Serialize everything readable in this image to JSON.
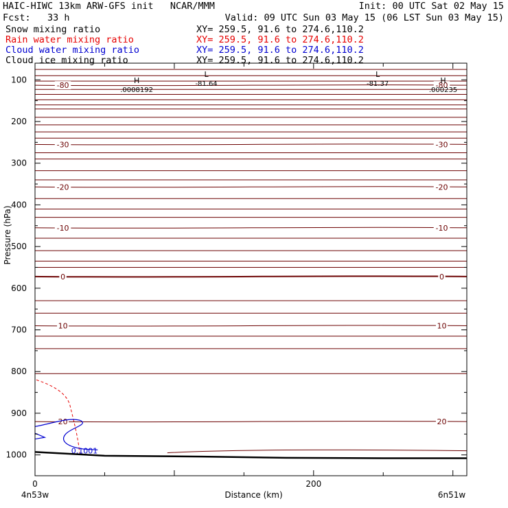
{
  "header": {
    "title_left": "HAIC-HIWC 13km ARW-GFS init   NCAR/MMM",
    "init": "Init: 00 UTC Sat 02 May 15",
    "fcst_label": "Fcst:   33 h",
    "valid": "Valid: 09 UTC Sun 03 May 15 (06 LST Sun 03 May 15)",
    "fields": [
      {
        "name": "Snow mixing ratio",
        "xy": "XY= 259.5, 91.6 to 274.6,110.2",
        "color": "#000000"
      },
      {
        "name": "Rain water mixing ratio",
        "xy": "XY= 259.5, 91.6 to 274.6,110.2",
        "color": "#e60000"
      },
      {
        "name": "Cloud water mixing ratio",
        "xy": "XY= 259.5, 91.6 to 274.6,110.2",
        "color": "#0000d0"
      },
      {
        "name": "Cloud ice mixing ratio",
        "xy": "XY= 259.5, 91.6 to 274.6,110.2",
        "color": "#000000"
      }
    ]
  },
  "chart_data": {
    "type": "cross-section contour",
    "xlabel": "Distance (km)",
    "ylabel": "Pressure (hPa)",
    "xlim": [
      0,
      310
    ],
    "ylim": [
      1050,
      60
    ],
    "x_ticks": [
      0,
      200
    ],
    "y_ticks": [
      100,
      200,
      300,
      400,
      500,
      600,
      700,
      800,
      900,
      1000
    ],
    "endpoint_left": "4n53w",
    "endpoint_right": "6n51w",
    "isotherm_color": "#6b0000",
    "isotherms": [
      {
        "label": "-80",
        "p": 113
      },
      {
        "label": "-30",
        "p": 255
      },
      {
        "label": "-20",
        "p": 357
      },
      {
        "label": "-10",
        "p": 455
      },
      {
        "label": "0",
        "p": 572
      },
      {
        "label": "10",
        "p": 690
      },
      {
        "label": "20",
        "p": 920
      }
    ],
    "unlabeled_isotherm_levels": [
      75,
      90,
      103,
      123,
      135,
      148,
      160,
      170,
      190,
      208,
      225,
      240,
      275,
      290,
      318,
      340,
      385,
      410,
      430,
      480,
      510,
      535,
      550,
      630,
      660,
      715,
      745,
      805
    ],
    "extrema": [
      {
        "type": "H",
        "value": ".0008192",
        "x": 73,
        "p": 118
      },
      {
        "type": "L",
        "value": "-81.64",
        "x": 123,
        "p": 103
      },
      {
        "type": "L",
        "value": "-81.37",
        "x": 246,
        "p": 103
      },
      {
        "type": "H",
        "value": ".000235",
        "x": 293,
        "p": 118
      }
    ],
    "cloud_water_label": "0.1001",
    "terrain": [
      [
        0,
        993
      ],
      [
        50,
        1002
      ],
      [
        120,
        1004
      ],
      [
        180,
        1007
      ],
      [
        250,
        1008
      ],
      [
        310,
        1008
      ]
    ]
  }
}
